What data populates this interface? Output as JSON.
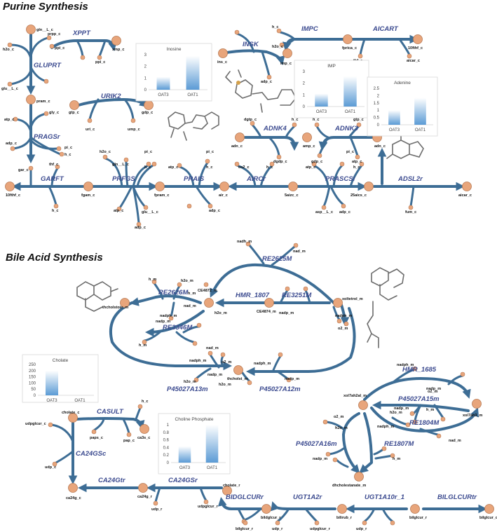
{
  "sections": {
    "purine_title": "Purine Synthesis",
    "bile_title": "Bile Acid Synthesis"
  },
  "colors": {
    "flux": "#3d6d95",
    "metabolite": "#e8a57b",
    "reaction_label": "#3b4a8f",
    "bar": "#5b9bd5"
  },
  "reactions": [
    "XPPT",
    "GLUPRT",
    "URIK2",
    "PRAGSr",
    "GARFT",
    "PRFGS",
    "PRAIS",
    "AIRCr",
    "PRASCSi",
    "ADSL2r",
    "ADNK4",
    "ADNK3",
    "INSK",
    "IMPC",
    "AICART",
    "RE2625M",
    "RE2626M",
    "HMR_1807",
    "RE3251M",
    "RE3346M",
    "P45027A13m",
    "P45027A12m",
    "HMR_1685",
    "P45027A15m",
    "RE1804M",
    "P45027A16m",
    "RE1807M",
    "CASULT",
    "CA24GSc",
    "CA24Gtr",
    "CA24GSr",
    "BIDGLCURr",
    "UGT1A2r",
    "UGT1A10r_1",
    "BILGLCURtr"
  ],
  "metabolites": [
    "gln__L_c",
    "prpp_c",
    "h2o_c",
    "xmp_c",
    "ppi_c",
    "ppi_c",
    "glu__L_c",
    "pram_c",
    "atp_c",
    "gly_c",
    "gtp_c",
    "gdp_c",
    "uri_c",
    "ump_c",
    "adp_c",
    "pi_c",
    "h_c",
    "gar_c",
    "thf_c",
    "10fthf_c",
    "h_c",
    "fgam_c",
    "h2o_c",
    "gln__L_c",
    "atp_c",
    "glu__L_c",
    "adp_c",
    "pi_c",
    "h_c",
    "fpram_c",
    "atp_c",
    "pi_c",
    "h_c",
    "adp_c",
    "air_c",
    "co2_c",
    "h_c",
    "5aizc_c",
    "atp_c",
    "asp__L_c",
    "adp_c",
    "pi_c",
    "h_c",
    "25aics_c",
    "aicar_c",
    "fum_c",
    "adn_c",
    "dgtp_c",
    "h_c",
    "amp_c",
    "dgdp_c",
    "h_c",
    "gtp_c",
    "gdp_c",
    "atp_c",
    "ins_c",
    "adp_c",
    "imp_c",
    "h_c",
    "h2o_c",
    "fprica_c",
    "thf_c",
    "10fthf_c",
    "aicar_c",
    "adn_c",
    "nadh_m",
    "nad_m",
    "h_m",
    "h2o_m",
    "h_m",
    "CE4872_m",
    "thcholstoic_m",
    "nad_m",
    "nadph_m",
    "nadp_m",
    "h2o_m",
    "h_m",
    "nad_m",
    "CE4874_m",
    "xoltetrol_m",
    "nadp_m",
    "nadph_m",
    "o2_m",
    "nadph_m",
    "o2_m",
    "thcholst_m",
    "nadp_m",
    "h2o_m",
    "h2o_m",
    "nadph_m",
    "nadp_m",
    "nadph_m",
    "nadp_m",
    "h2o_m",
    "o2_m",
    "xol7ah2al_m",
    "xol7ah3_m",
    "h_m",
    "nadp_m",
    "nad_m",
    "nadph_m",
    "o2_m",
    "h2o_m",
    "nadp_m",
    "h_m",
    "dhcholestanate_m",
    "cholate_c",
    "h_c",
    "udpglcur_c",
    "paps_c",
    "pap_c",
    "ca3s_c",
    "udp_c",
    "ca24g_c",
    "ca24g_r",
    "udp_r",
    "udpglcur_r",
    "cholate_r",
    "bilglcur_r",
    "bildglcur_r",
    "udp_r",
    "udpglcur_r",
    "bilirub_r",
    "udp_r",
    "bilglcur_r",
    "bilglcur_c"
  ],
  "charts": [
    {
      "title": "Inosine",
      "categories": [
        "OAT3",
        "OAT1"
      ],
      "values": [
        1.1,
        2.9
      ],
      "yticks": [
        "0",
        "1",
        "2",
        "3"
      ],
      "ylim": [
        0,
        3
      ]
    },
    {
      "title": "IMP",
      "categories": [
        "OAT3",
        "OAT1"
      ],
      "values": [
        1.1,
        2.6
      ],
      "yticks": [
        "0",
        "1",
        "2",
        "3"
      ],
      "ylim": [
        0,
        3
      ]
    },
    {
      "title": "Adenine",
      "categories": [
        "OAT3",
        "OAT1"
      ],
      "values": [
        1.0,
        1.85
      ],
      "yticks": [
        "0",
        "0.5",
        "1",
        "1.5",
        "2",
        "2.5"
      ],
      "ylim": [
        0,
        2.5
      ]
    },
    {
      "title": "Cholate",
      "categories": [
        "OAT3",
        "OAT1"
      ],
      "values": [
        200,
        0
      ],
      "yticks": [
        "0",
        "50",
        "100",
        "150",
        "200",
        "250"
      ],
      "ylim": [
        0,
        250
      ]
    },
    {
      "title": "Choline Phosphate",
      "categories": [
        "OAT3",
        "OAT1"
      ],
      "values": [
        0.43,
        1.0
      ],
      "yticks": [
        "0",
        "0.2",
        "0.4",
        "0.6",
        "0.8",
        "1"
      ],
      "ylim": [
        0,
        1
      ]
    }
  ],
  "chart_data": [
    {
      "type": "bar",
      "title": "Inosine",
      "categories": [
        "OAT3",
        "OAT1"
      ],
      "values": [
        1.1,
        2.9
      ],
      "ylim": [
        0,
        3
      ]
    },
    {
      "type": "bar",
      "title": "IMP",
      "categories": [
        "OAT3",
        "OAT1"
      ],
      "values": [
        1.1,
        2.6
      ],
      "ylim": [
        0,
        3
      ]
    },
    {
      "type": "bar",
      "title": "Adenine",
      "categories": [
        "OAT3",
        "OAT1"
      ],
      "values": [
        1.0,
        1.85
      ],
      "ylim": [
        0,
        2.5
      ]
    },
    {
      "type": "bar",
      "title": "Cholate",
      "categories": [
        "OAT3",
        "OAT1"
      ],
      "values": [
        200,
        0
      ],
      "ylim": [
        0,
        250
      ]
    },
    {
      "type": "bar",
      "title": "Choline Phosphate",
      "categories": [
        "OAT3",
        "OAT1"
      ],
      "values": [
        0.43,
        1.0
      ],
      "ylim": [
        0,
        1
      ]
    }
  ]
}
